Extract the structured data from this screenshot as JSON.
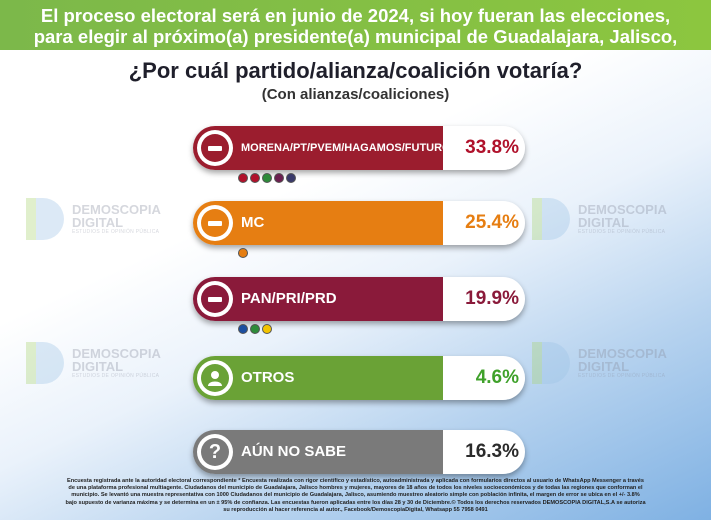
{
  "header": {
    "line1": "El proceso electoral será en junio de 2024, si hoy fueran las elecciones,",
    "line2": "para elegir al próximo(a) presidente(a) municipal de Guadalajara, Jalisco,"
  },
  "question": "¿Por cuál partido/alianza/coalición votaría?",
  "subtitle": "(Con alianzas/coaliciones)",
  "watermark": {
    "name": "DEMOSCOPIA",
    "name2": "DIGITAL",
    "tagline": "ESTUDIOS DE OPINIÓN PÚBLICA"
  },
  "chart_data": {
    "type": "bar",
    "categories": [
      "MORENA/PT/PVEM/HAGAMOS/FUTURO",
      "MC",
      "PAN/PRI/PRD",
      "OTROS",
      "AÚN NO SABE"
    ],
    "values": [
      33.8,
      25.4,
      19.9,
      4.6,
      16.3
    ],
    "value_labels": [
      "33.8%",
      "25.4%",
      "19.9%",
      "4.6%",
      "16.3%"
    ],
    "colors": [
      "#9b1d2e",
      "#e67e12",
      "#8a1a3a",
      "#6aa236",
      "#7a7a7a"
    ],
    "value_colors": [
      "#b0112b",
      "#e67e12",
      "#8a1a3a",
      "#3fa12a",
      "#2b2b2b"
    ],
    "icons": [
      "minus-icon",
      "minus-icon",
      "minus-icon",
      "person-icon",
      "question-icon"
    ]
  },
  "footer": {
    "line1": "Encuesta registrada ante la autoridad electoral correspondiente * Encuesta realizada con rigor científico y estadístico, autoadministrada y aplicada con formularios directos al usuario de WhatsApp Messenger a través",
    "line2": "de una plataforma profesional multiagente. Ciudadanos del municipio de Guadalajara, Jalisco hombres y mujeres, mayores de 18 años de todos los niveles socioeconómicos y de todas las regiones que conforman el",
    "line3": "municipio. Se levantó una muestra representativa con 1000 Ciudadanos del municipio de Guadalajara, Jalisco, asumiendo muestreo aleatorio simple con población infinita, el margen de error se ubica en el +/- 3.8%",
    "line4": "bajo supuesto de varianza máxima y se determina en un ± 95% de confianza. Las encuestas fueron aplicadas entre los días 28 y 30 de Diciembre.© Todos los derechos reservados DEMOSCOPIA DIGITAL,S.A se autoriza",
    "line5": "su reproducción al hacer referencia al autor., Facebook/DemoscopiaDigital, Whatsapp 55 7958 0491"
  }
}
